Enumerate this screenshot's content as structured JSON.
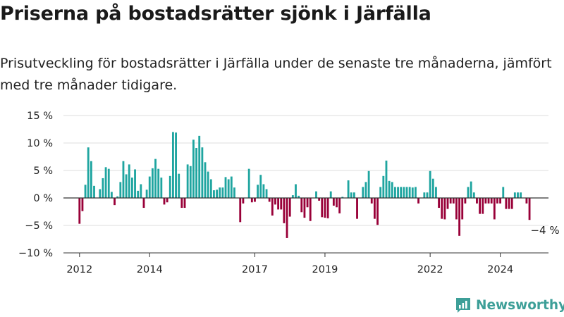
{
  "title": "Priserna på bostadsrätter sjönk i Järfälla",
  "subtitle": "Prisutveckling för bostadsrätter i Järfälla under de senaste tre månaderna, jämfört med tre månader tidigare.",
  "brand": "Newsworthy",
  "colors": {
    "positive": "#1fa5a0",
    "negative": "#990038",
    "grid": "#dddddd",
    "axis": "#333333",
    "brand": "#3d9f98"
  },
  "chart_data": {
    "type": "bar",
    "title": "Priserna på bostadsrätter sjönk i Järfälla",
    "subtitle": "Prisutveckling för bostadsrätter i Järfälla under de senaste tre månaderna, jämfört med tre månader tidigare.",
    "xlabel": "",
    "ylabel": "",
    "unit": "%",
    "ylim": [
      -10,
      15
    ],
    "y_ticks": [
      {
        "value": 15,
        "label": "15 %"
      },
      {
        "value": 10,
        "label": "10 %"
      },
      {
        "value": 5,
        "label": "5 %"
      },
      {
        "value": 0,
        "label": "0 %"
      },
      {
        "value": -5,
        "label": "−5 %"
      },
      {
        "value": -10,
        "label": "−10 %"
      }
    ],
    "x_ticks": [
      {
        "date": "2012-01",
        "label": "2012"
      },
      {
        "date": "2014-01",
        "label": "2014"
      },
      {
        "date": "2017-01",
        "label": "2017"
      },
      {
        "date": "2019-01",
        "label": "2019"
      },
      {
        "date": "2022-01",
        "label": "2022"
      },
      {
        "date": "2024-01",
        "label": "2024"
      }
    ],
    "x_range": [
      "2011-08",
      "2025-06"
    ],
    "grid": true,
    "last_value_label": "−4 %",
    "series": [
      {
        "months": [
          "2012-01",
          "2012-02",
          "2012-03",
          "2012-04",
          "2012-05",
          "2012-06",
          "2012-08",
          "2012-09",
          "2012-10",
          "2012-11",
          "2012-12",
          "2013-01",
          "2013-02",
          "2013-03",
          "2013-04",
          "2013-05",
          "2013-06",
          "2013-07",
          "2013-08",
          "2013-09",
          "2013-10",
          "2013-11",
          "2013-12",
          "2014-01",
          "2014-02",
          "2014-03",
          "2014-04",
          "2014-05",
          "2014-06",
          "2014-07",
          "2014-08",
          "2014-09",
          "2014-10",
          "2014-11",
          "2014-12",
          "2015-01",
          "2015-02",
          "2015-03",
          "2015-04",
          "2015-05",
          "2015-06",
          "2015-07",
          "2015-08",
          "2015-09",
          "2015-10",
          "2015-11",
          "2015-12",
          "2016-01",
          "2016-02",
          "2016-03",
          "2016-04",
          "2016-05",
          "2016-06",
          "2016-08",
          "2016-09",
          "2016-11",
          "2016-12",
          "2017-01",
          "2017-02",
          "2017-03",
          "2017-04",
          "2017-05",
          "2017-06",
          "2017-07",
          "2017-08",
          "2017-09",
          "2017-10",
          "2017-11",
          "2017-12",
          "2018-01",
          "2018-02",
          "2018-03",
          "2018-04",
          "2018-05",
          "2018-06",
          "2018-07",
          "2018-08",
          "2018-10",
          "2018-11",
          "2018-12",
          "2019-01",
          "2019-02",
          "2019-03",
          "2019-04",
          "2019-05",
          "2019-06",
          "2019-07",
          "2019-09",
          "2019-10",
          "2019-11",
          "2019-12",
          "2020-02",
          "2020-03",
          "2020-04",
          "2020-05",
          "2020-06",
          "2020-07",
          "2020-08",
          "2020-09",
          "2020-10",
          "2020-11",
          "2020-12",
          "2021-01",
          "2021-02",
          "2021-03",
          "2021-04",
          "2021-05",
          "2021-06",
          "2021-07",
          "2021-08",
          "2021-09",
          "2021-11",
          "2021-12",
          "2022-01",
          "2022-02",
          "2022-03",
          "2022-04",
          "2022-05",
          "2022-06",
          "2022-07",
          "2022-08",
          "2022-09",
          "2022-10",
          "2022-11",
          "2022-12",
          "2023-01",
          "2023-02",
          "2023-03",
          "2023-04",
          "2023-05",
          "2023-06",
          "2023-07",
          "2023-08",
          "2023-09",
          "2023-10",
          "2023-11",
          "2023-12",
          "2024-01",
          "2024-02",
          "2024-03",
          "2024-04",
          "2024-05",
          "2024-06",
          "2024-07",
          "2024-08",
          "2024-10",
          "2024-11"
        ],
        "values": [
          -4.7,
          -2.4,
          2.4,
          9.2,
          6.7,
          2.2,
          1.6,
          3.6,
          5.6,
          5.3,
          1.1,
          -1.3,
          0.3,
          2.9,
          6.7,
          4.3,
          6.1,
          3.7,
          5.2,
          1.3,
          2.5,
          -1.8,
          1.5,
          3.9,
          5.4,
          7.1,
          5.3,
          3.7,
          -1.2,
          -0.8,
          4.0,
          12.0,
          11.9,
          4.4,
          -1.8,
          -1.8,
          6.1,
          5.8,
          10.6,
          9.1,
          11.3,
          9.2,
          6.5,
          4.8,
          3.4,
          1.4,
          1.5,
          1.9,
          1.9,
          3.8,
          3.4,
          3.9,
          1.9,
          -4.4,
          -1.0,
          5.3,
          -0.8,
          -0.7,
          2.4,
          4.2,
          2.5,
          1.6,
          -0.7,
          -3.2,
          -1.2,
          -2.1,
          -2.1,
          -4.6,
          -7.3,
          -3.4,
          0.5,
          2.5,
          0.4,
          -2.6,
          -3.6,
          -1.7,
          -4.2,
          1.2,
          -0.5,
          -3.5,
          -3.6,
          -3.7,
          1.2,
          -1.4,
          -1.7,
          -2.8,
          0.2,
          3.2,
          1.0,
          1.0,
          -3.8,
          2.0,
          2.9,
          4.9,
          -1.0,
          -3.8,
          -4.9,
          2.0,
          4.0,
          6.8,
          3.1,
          2.9,
          2.0,
          2.0,
          2.0,
          2.0,
          2.0,
          2.0,
          1.9,
          2.0,
          -1.0,
          1.0,
          1.0,
          4.9,
          3.5,
          2.0,
          -1.8,
          -3.8,
          -3.9,
          -2.0,
          -1.0,
          -1.0,
          -3.9,
          -6.9,
          -3.9,
          -1.0,
          2.0,
          3.0,
          1.0,
          -1.0,
          -2.9,
          -2.9,
          -1.0,
          -1.0,
          -1.0,
          -3.9,
          -1.0,
          -1.0,
          2.0,
          -2.0,
          -2.0,
          -2.0,
          1.0,
          1.0,
          1.0,
          -1.0,
          -4.0
        ]
      }
    ]
  }
}
